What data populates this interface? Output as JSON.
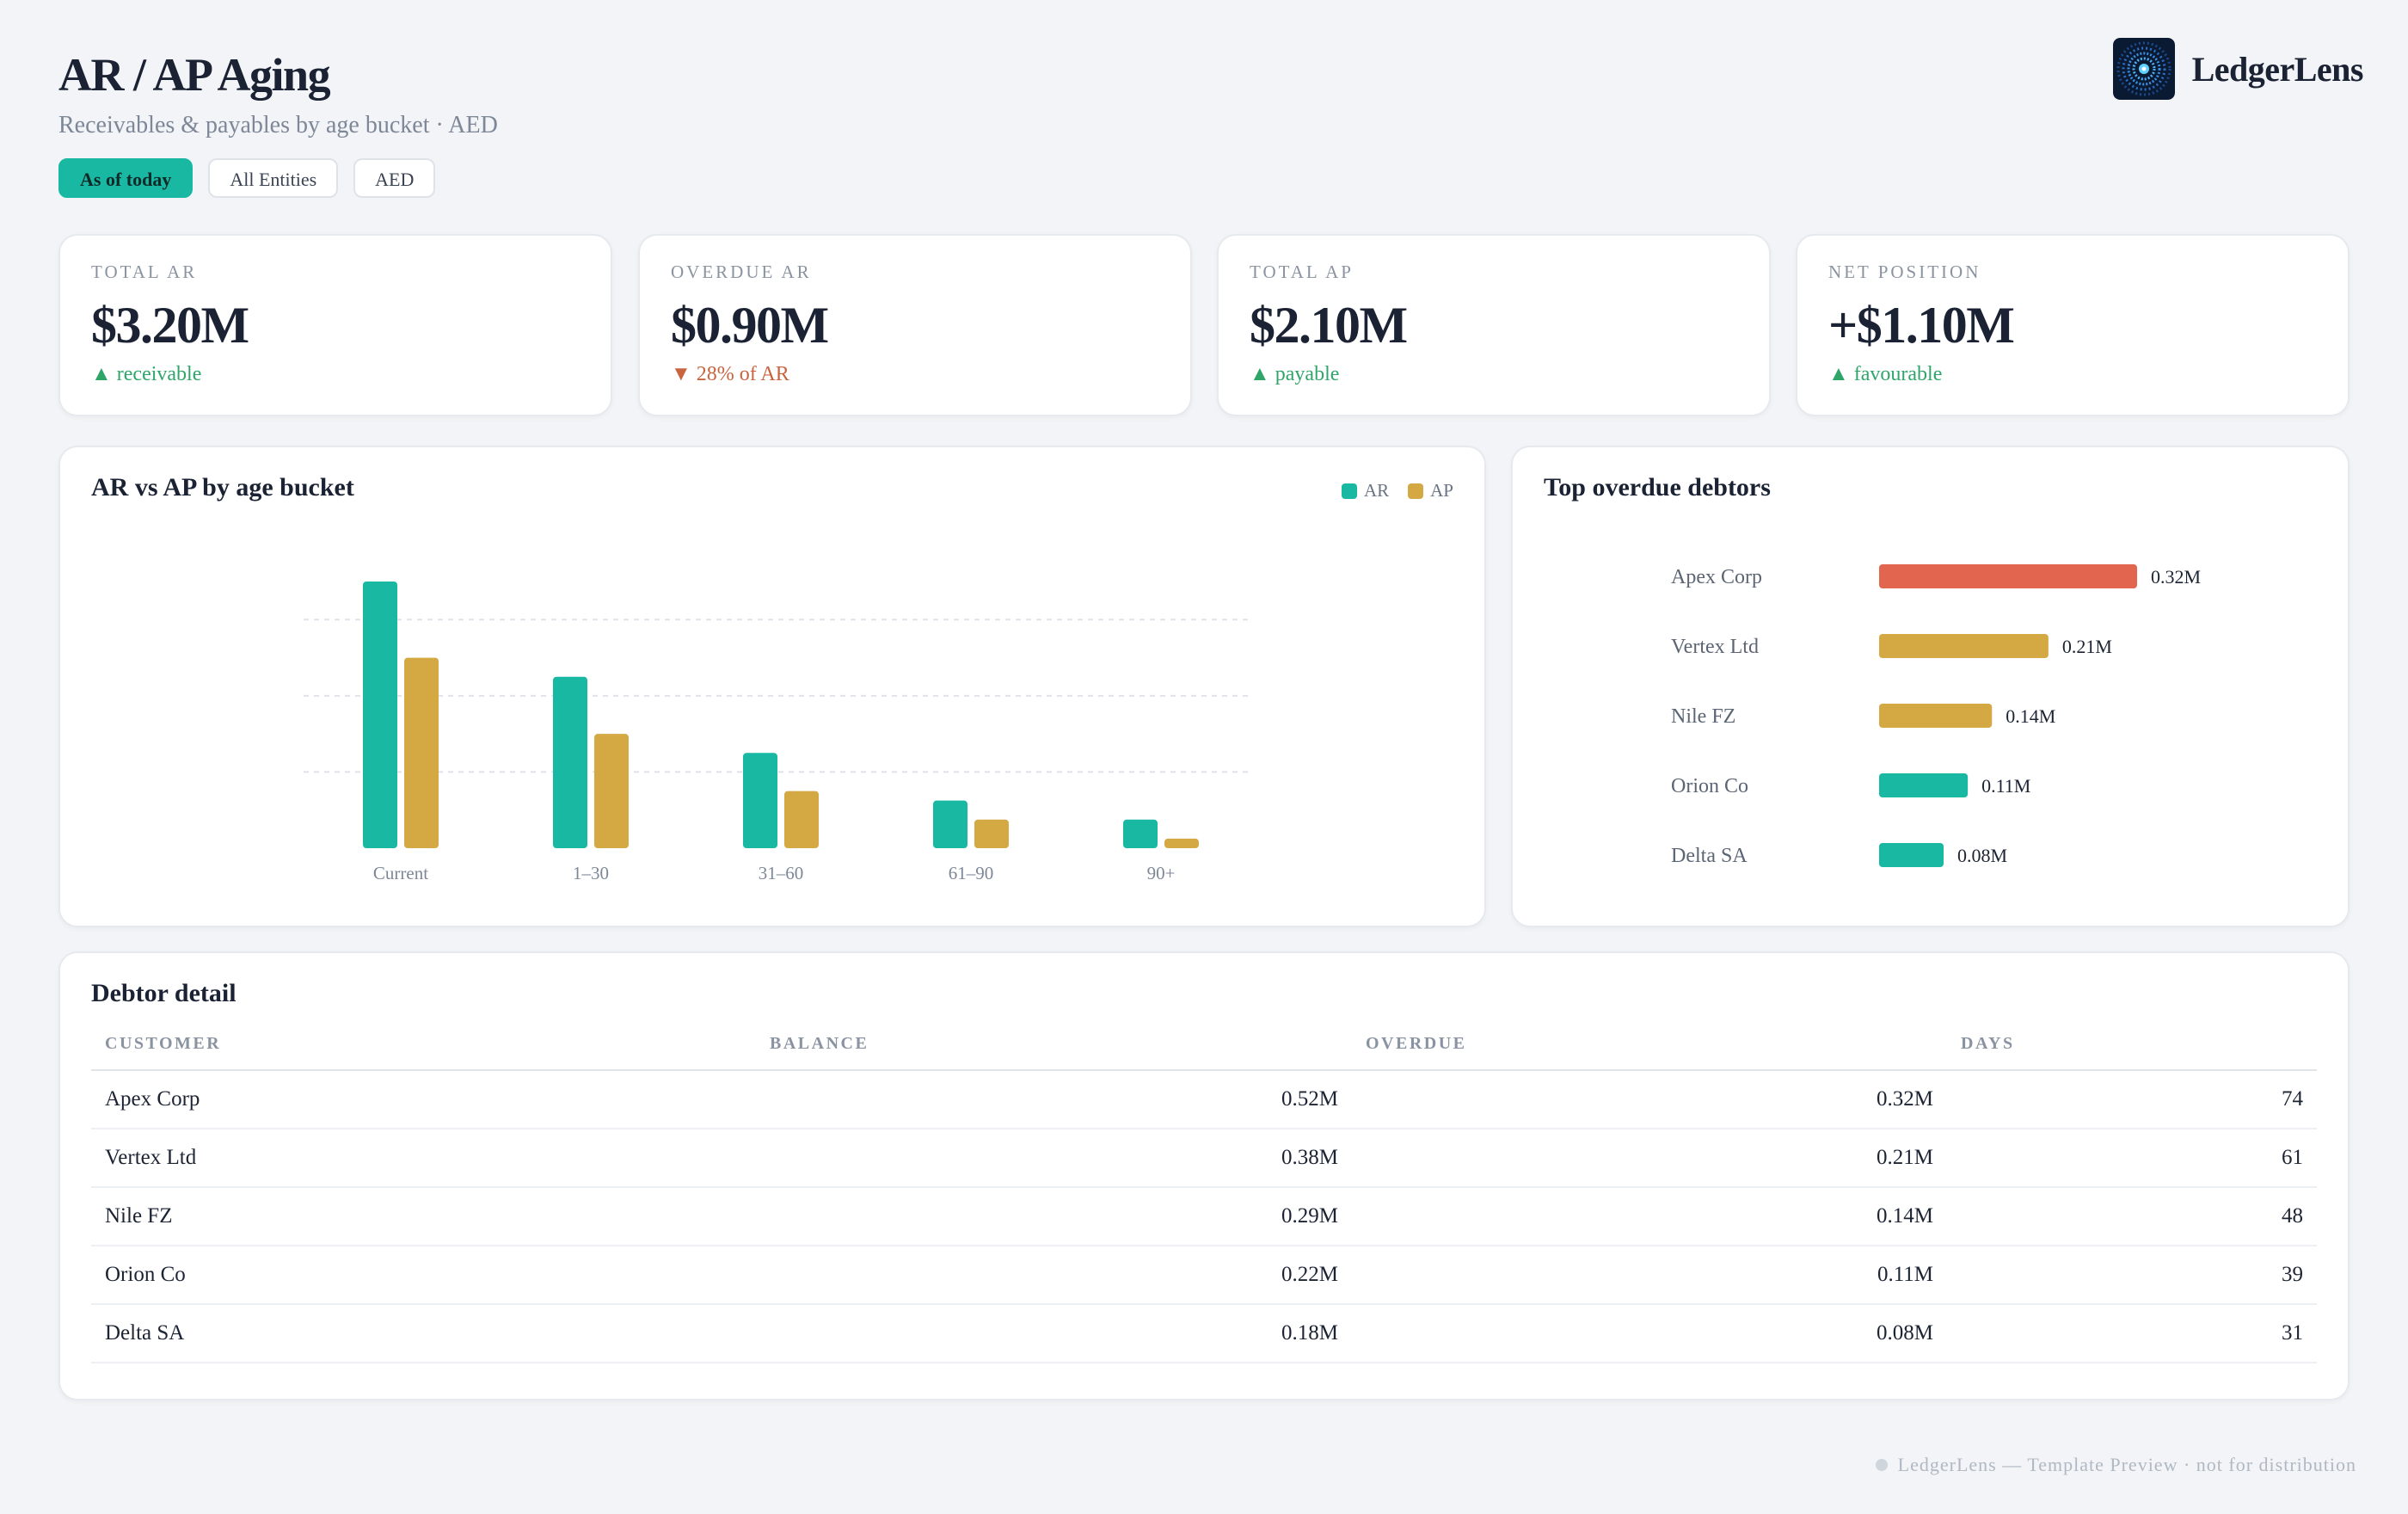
{
  "header": {
    "title": "AR / AP Aging",
    "subtitle": "Receivables & payables by age bucket · AED",
    "filters": [
      {
        "label": "As of today",
        "active": true
      },
      {
        "label": "All Entities",
        "active": false
      },
      {
        "label": "AED",
        "active": false
      }
    ]
  },
  "brand": {
    "name": "LedgerLens",
    "logo_icon": "ledgerlens-radial-logo-icon"
  },
  "kpis": [
    {
      "label": "TOTAL AR",
      "value": "$3.20M",
      "arrow": "▲",
      "delta": "receivable",
      "trend": "up"
    },
    {
      "label": "OVERDUE AR",
      "value": "$0.90M",
      "arrow": "▼",
      "delta": "28% of AR",
      "trend": "down"
    },
    {
      "label": "TOTAL AP",
      "value": "$2.10M",
      "arrow": "▲",
      "delta": "payable",
      "trend": "up"
    },
    {
      "label": "NET POSITION",
      "value": "+$1.10M",
      "arrow": "▲",
      "delta": "favourable",
      "trend": "up"
    }
  ],
  "colors": {
    "ar": "#19b8a2",
    "ap": "#d4a843",
    "danger": "#e2664f",
    "up": "#2fa56a",
    "down": "#c8643f"
  },
  "chart_data": [
    {
      "type": "bar",
      "title": "AR vs AP by age bucket",
      "categories": [
        "Current",
        "1–30",
        "31–60",
        "61–90",
        "90+"
      ],
      "series": [
        {
          "name": "AR",
          "color": "#19b8a2",
          "values": [
            1.4,
            0.9,
            0.5,
            0.25,
            0.15
          ]
        },
        {
          "name": "AP",
          "color": "#d4a843",
          "values": [
            1.0,
            0.6,
            0.3,
            0.15,
            0.05
          ]
        }
      ],
      "ylim": [
        0,
        1.4
      ],
      "gridlines": [
        0.4,
        0.8,
        1.2
      ],
      "grid": true,
      "legend": "top-right"
    },
    {
      "type": "bar",
      "orientation": "horizontal",
      "title": "Top overdue debtors",
      "categories": [
        "Apex Corp",
        "Vertex Ltd",
        "Nile FZ",
        "Orion Co",
        "Delta SA"
      ],
      "values": [
        0.32,
        0.21,
        0.14,
        0.11,
        0.08
      ],
      "value_labels": [
        "0.32M",
        "0.21M",
        "0.14M",
        "0.11M",
        "0.08M"
      ],
      "colors": [
        "#e2664f",
        "#d4a843",
        "#d4a843",
        "#19b8a2",
        "#19b8a2"
      ],
      "xlim": [
        0,
        0.32
      ]
    }
  ],
  "table": {
    "title": "Debtor detail",
    "columns": [
      "CUSTOMER",
      "BALANCE",
      "OVERDUE",
      "DAYS"
    ],
    "rows": [
      [
        "Apex Corp",
        "0.52M",
        "0.32M",
        "74"
      ],
      [
        "Vertex Ltd",
        "0.38M",
        "0.21M",
        "61"
      ],
      [
        "Nile FZ",
        "0.29M",
        "0.14M",
        "48"
      ],
      [
        "Orion Co",
        "0.22M",
        "0.11M",
        "39"
      ],
      [
        "Delta SA",
        "0.18M",
        "0.08M",
        "31"
      ]
    ]
  },
  "footer": {
    "text": "LedgerLens — Template Preview · not for distribution"
  }
}
